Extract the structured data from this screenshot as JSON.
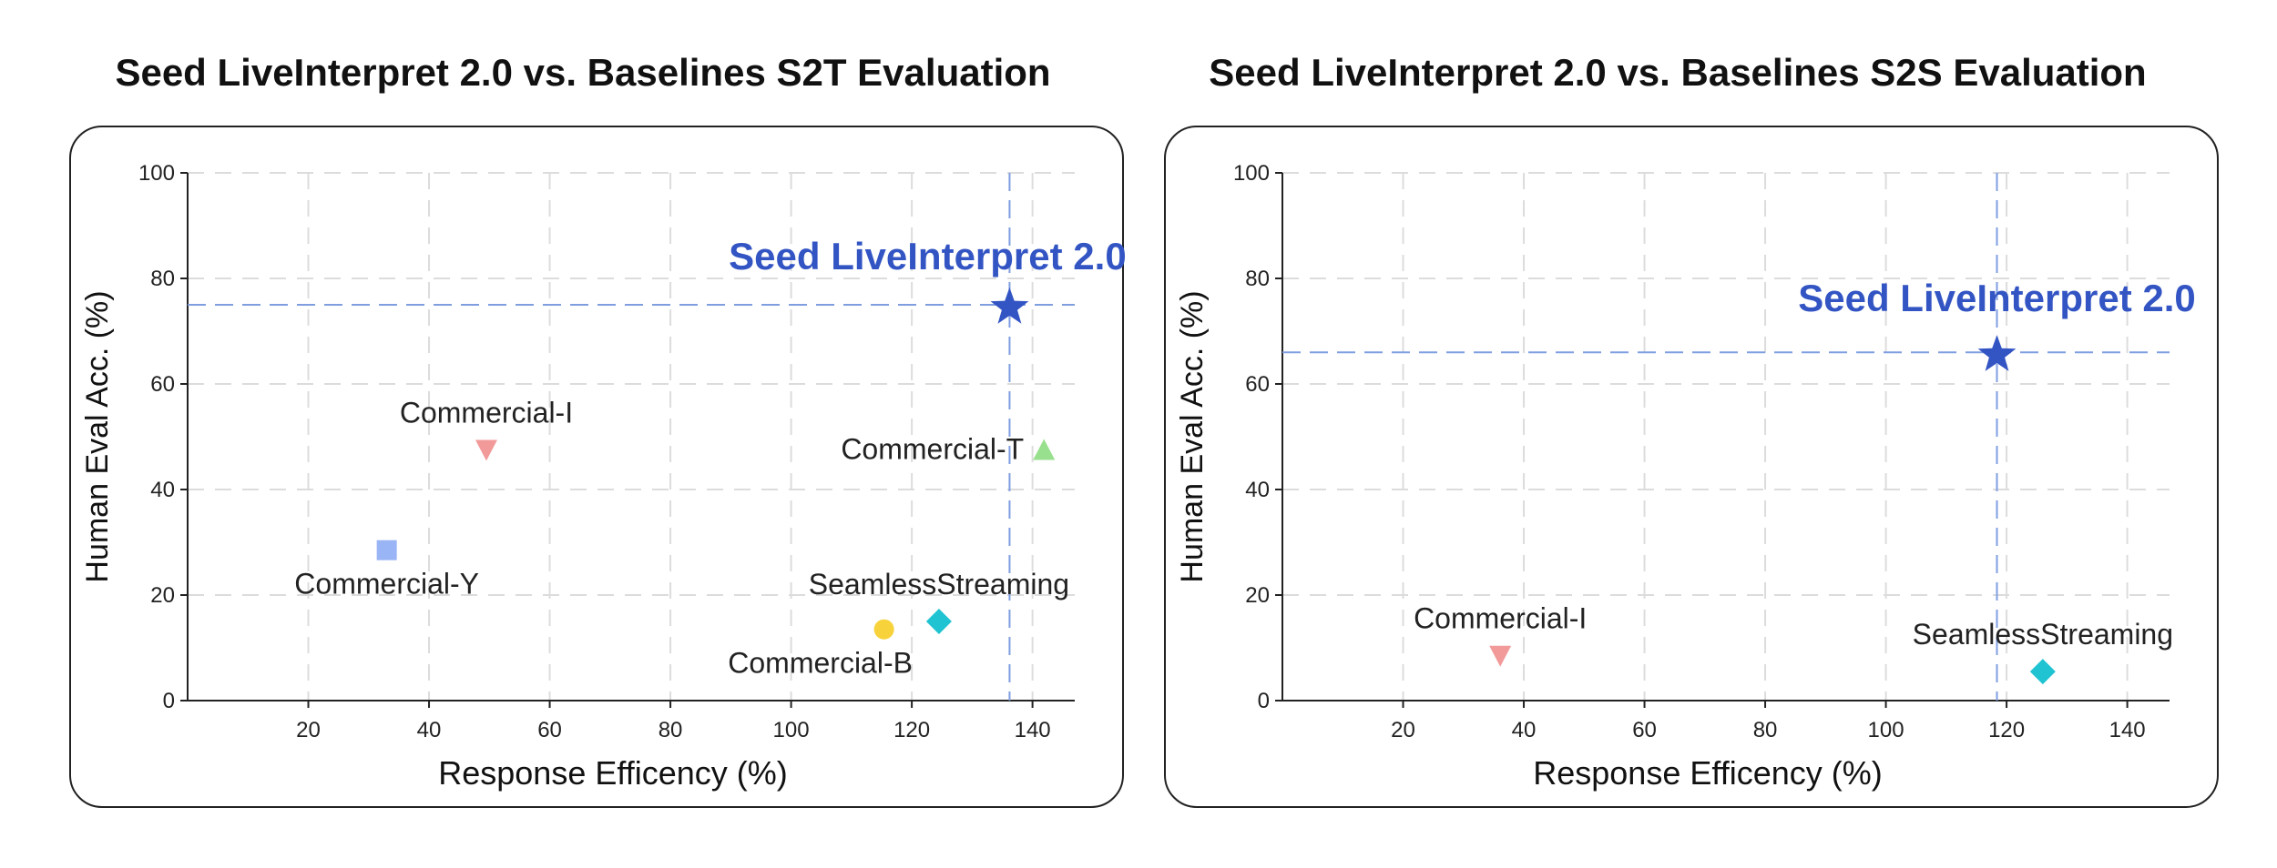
{
  "chart_data": [
    {
      "type": "scatter",
      "title": "Seed LiveInterpret 2.0 vs. Baselines S2T Evaluation",
      "xlabel": "Response Efficency (%)",
      "ylabel": "Human Eval Acc. (%)",
      "xlim": [
        0,
        147
      ],
      "ylim": [
        0,
        100
      ],
      "xticks": [
        20,
        40,
        60,
        80,
        100,
        120,
        140
      ],
      "yticks": [
        0,
        20,
        40,
        60,
        80,
        100
      ],
      "grid": true,
      "highlight": {
        "name": "Seed LiveInterpret 2.0",
        "x": 136.2,
        "y": 75
      },
      "points": [
        {
          "name": "Commercial-I",
          "x": 49.5,
          "y": 47.5,
          "marker": "triangle-down",
          "color": "#f29a9a",
          "label_pos": "above"
        },
        {
          "name": "Commercial-T",
          "x": 141.9,
          "y": 47.5,
          "marker": "triangle-up",
          "color": "#98e08e",
          "label_pos": "left"
        },
        {
          "name": "Commercial-Y",
          "x": 33,
          "y": 28.5,
          "marker": "square",
          "color": "#9ab5f5",
          "label_pos": "below"
        },
        {
          "name": "Commercial-B",
          "x": 115.4,
          "y": 13.5,
          "marker": "circle",
          "color": "#f7d23a",
          "label_pos": "below-left"
        },
        {
          "name": "SeamlessStreaming",
          "x": 124.5,
          "y": 15,
          "marker": "diamond",
          "color": "#1fc3d1",
          "label_pos": "above"
        },
        {
          "name": "Seed LiveInterpret 2.0",
          "x": 136.2,
          "y": 74.5,
          "marker": "star",
          "color": "#3355c4",
          "label_pos": "above-left"
        }
      ]
    },
    {
      "type": "scatter",
      "title": "Seed LiveInterpret 2.0 vs. Baselines S2S Evaluation",
      "xlabel": "Response Efficency (%)",
      "ylabel": "Human Eval Acc. (%)",
      "xlim": [
        0,
        147
      ],
      "ylim": [
        0,
        100
      ],
      "xticks": [
        20,
        40,
        60,
        80,
        100,
        120,
        140
      ],
      "yticks": [
        0,
        20,
        40,
        60,
        80,
        100
      ],
      "grid": true,
      "highlight": {
        "name": "Seed LiveInterpret 2.0",
        "x": 118.4,
        "y": 66
      },
      "points": [
        {
          "name": "Commercial-I",
          "x": 36.1,
          "y": 8.5,
          "marker": "triangle-down",
          "color": "#f29a9a",
          "label_pos": "above"
        },
        {
          "name": "SeamlessStreaming",
          "x": 126,
          "y": 5.5,
          "marker": "diamond",
          "color": "#1fc3d1",
          "label_pos": "above"
        },
        {
          "name": "Seed LiveInterpret 2.0",
          "x": 118.4,
          "y": 65.5,
          "marker": "star",
          "color": "#3355c4",
          "label_pos": "above"
        }
      ]
    }
  ]
}
